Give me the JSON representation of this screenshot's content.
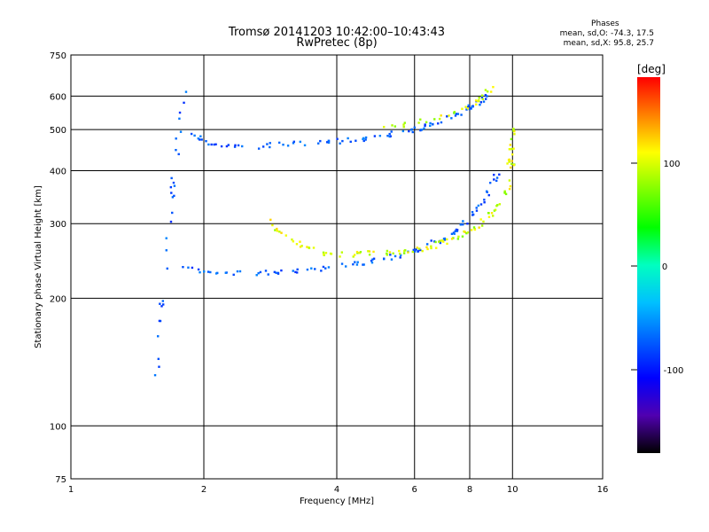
{
  "title": "Tromsø 20141203 10:42:00–10:43:43",
  "subtitle": "RwPretec (8p)",
  "phase_info": {
    "heading": "Phases",
    "line_o": "mean, sd,O: -74.3, 17.5",
    "line_x": "mean, sd,X:  95.8, 25.7"
  },
  "colorbar": {
    "label": "[deg]",
    "ticks": [
      "100",
      "0",
      "-100"
    ],
    "colors": [
      "#ff0000",
      "#ff8000",
      "#ffff00",
      "#80ff00",
      "#00ff00",
      "#00ffc0",
      "#00c0ff",
      "#0060ff",
      "#0000ff",
      "#5000b0",
      "#000000"
    ]
  },
  "chart_data": {
    "type": "scatter",
    "title": "Tromsø 20141203 10:42:00–10:43:43",
    "subtitle": "RwPretec (8p)",
    "xlabel": "Frequency [MHz]",
    "ylabel": "Stationary phase Virtual Height [km]",
    "xscale": "log",
    "yscale": "log",
    "xlim": [
      1,
      16
    ],
    "ylim": [
      75,
      750
    ],
    "xticks": [
      1,
      2,
      4,
      6,
      8,
      10,
      16
    ],
    "yticks": [
      75,
      100,
      200,
      300,
      400,
      500,
      600,
      750
    ],
    "grid": true,
    "colorbar_range": [
      -180,
      180
    ],
    "series": [
      {
        "name": "O",
        "phase_mean": -74.3,
        "phase_sd": 17.5,
        "traces": [
          {
            "x": [
              1.86,
              2.0,
              2.2,
              2.5,
              3.0,
              3.5,
              4.0,
              4.5,
              5.0,
              5.5,
              6.0,
              6.5,
              7.0,
              7.5,
              8.0,
              8.5,
              8.8
            ],
            "y": [
              495,
              470,
              460,
              457,
              460,
              465,
              470,
              475,
              482,
              492,
              500,
              512,
              525,
              545,
              565,
              585,
              600
            ]
          },
          {
            "x": [
              1.8,
              2.0,
              2.3,
              2.7,
              3.0,
              3.5,
              4.0,
              4.5,
              5.0,
              5.5,
              6.0,
              6.5,
              7.0,
              7.5,
              8.0,
              8.5,
              9.0,
              9.3
            ],
            "y": [
              236,
              230,
              229,
              230,
              232,
              234,
              238,
              242,
              247,
              253,
              260,
              268,
              278,
              290,
              310,
              335,
              370,
              400
            ]
          },
          {
            "x": [
              1.55,
              1.6,
              1.65,
              1.7,
              1.75,
              1.8
            ],
            "y": [
              120,
              180,
              260,
              360,
              480,
              620
            ]
          }
        ]
      },
      {
        "name": "X",
        "phase_mean": 95.8,
        "phase_sd": 25.7,
        "traces": [
          {
            "x": [
              2.8,
              3.0,
              3.3,
              3.6,
              4.0,
              4.5,
              5.0,
              5.5,
              6.0,
              6.5,
              7.0,
              7.5,
              8.0,
              8.5,
              9.0,
              9.5,
              9.8,
              10.0
            ],
            "y": [
              305,
              285,
              268,
              258,
              254,
              254,
              256,
              258,
              260,
              265,
              271,
              278,
              288,
              300,
              318,
              340,
              370,
              420
            ]
          },
          {
            "x": [
              5.0,
              6.0,
              7.0,
              8.0,
              8.5,
              9.0
            ],
            "y": [
              505,
              520,
              540,
              570,
              595,
              630
            ]
          },
          {
            "x": [
              9.8,
              9.9,
              10.0,
              10.1
            ],
            "y": [
              400,
              440,
              480,
              510
            ]
          }
        ]
      }
    ]
  }
}
